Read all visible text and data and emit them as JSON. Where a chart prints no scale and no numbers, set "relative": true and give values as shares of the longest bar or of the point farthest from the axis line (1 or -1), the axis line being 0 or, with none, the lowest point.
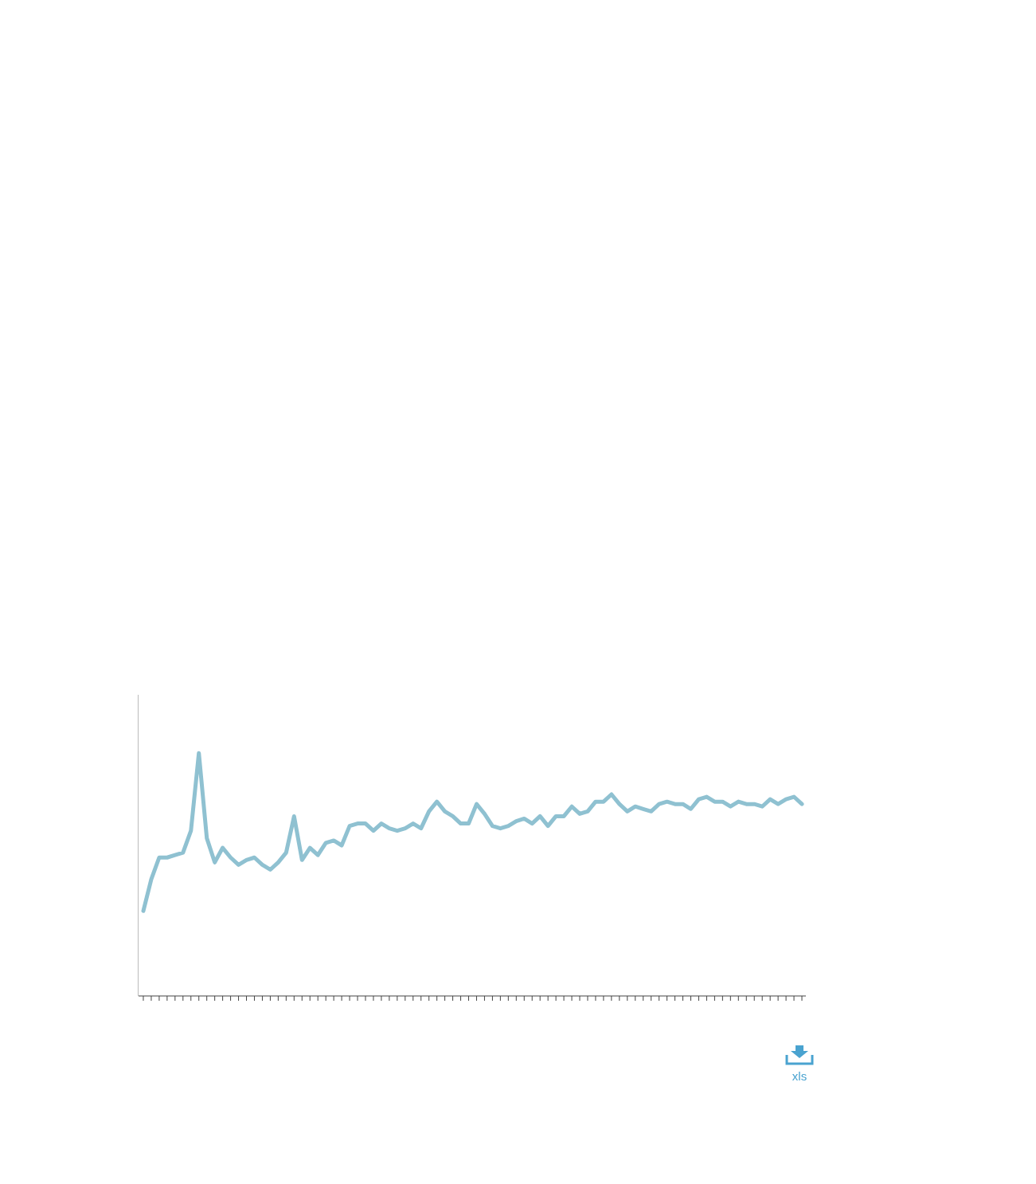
{
  "chart_data": {
    "type": "line",
    "relative": true,
    "categories": [
      null,
      null,
      null,
      null,
      null,
      null,
      null,
      null,
      null,
      null,
      null,
      null,
      null,
      null,
      null,
      null,
      null,
      null,
      null,
      null,
      null,
      null,
      null,
      null,
      null,
      null,
      null,
      null,
      null,
      null,
      null,
      null,
      null,
      null,
      null,
      null,
      null,
      null,
      null,
      null,
      null,
      null,
      null,
      null,
      null,
      null,
      null,
      null,
      null,
      null,
      null,
      null,
      null,
      null,
      null,
      null,
      null,
      null,
      null,
      null,
      null,
      null,
      null,
      null,
      null,
      null,
      null,
      null,
      null,
      null,
      null,
      null,
      null,
      null,
      null,
      null,
      null,
      null,
      null,
      null,
      null,
      null,
      null,
      null
    ],
    "series": [
      {
        "color": "#8fc1d1",
        "values": [
          0.35,
          0.48,
          0.57,
          0.57,
          0.58,
          0.59,
          0.68,
          1.0,
          0.65,
          0.55,
          0.61,
          0.57,
          0.54,
          0.56,
          0.57,
          0.54,
          0.52,
          0.55,
          0.59,
          0.74,
          0.56,
          0.61,
          0.58,
          0.63,
          0.64,
          0.62,
          0.7,
          0.71,
          0.71,
          0.68,
          0.71,
          0.69,
          0.68,
          0.69,
          0.71,
          0.69,
          0.76,
          0.8,
          0.76,
          0.74,
          0.71,
          0.71,
          0.79,
          0.75,
          0.7,
          0.69,
          0.7,
          0.72,
          0.73,
          0.71,
          0.74,
          0.7,
          0.74,
          0.74,
          0.78,
          0.75,
          0.76,
          0.8,
          0.8,
          0.83,
          0.79,
          0.76,
          0.78,
          0.77,
          0.76,
          0.79,
          0.8,
          0.79,
          0.79,
          0.77,
          0.81,
          0.82,
          0.8,
          0.8,
          0.78,
          0.8,
          0.79,
          0.79,
          0.78,
          0.81,
          0.79,
          0.81,
          0.82,
          0.79
        ]
      }
    ],
    "annotations": [
      "xls"
    ]
  }
}
